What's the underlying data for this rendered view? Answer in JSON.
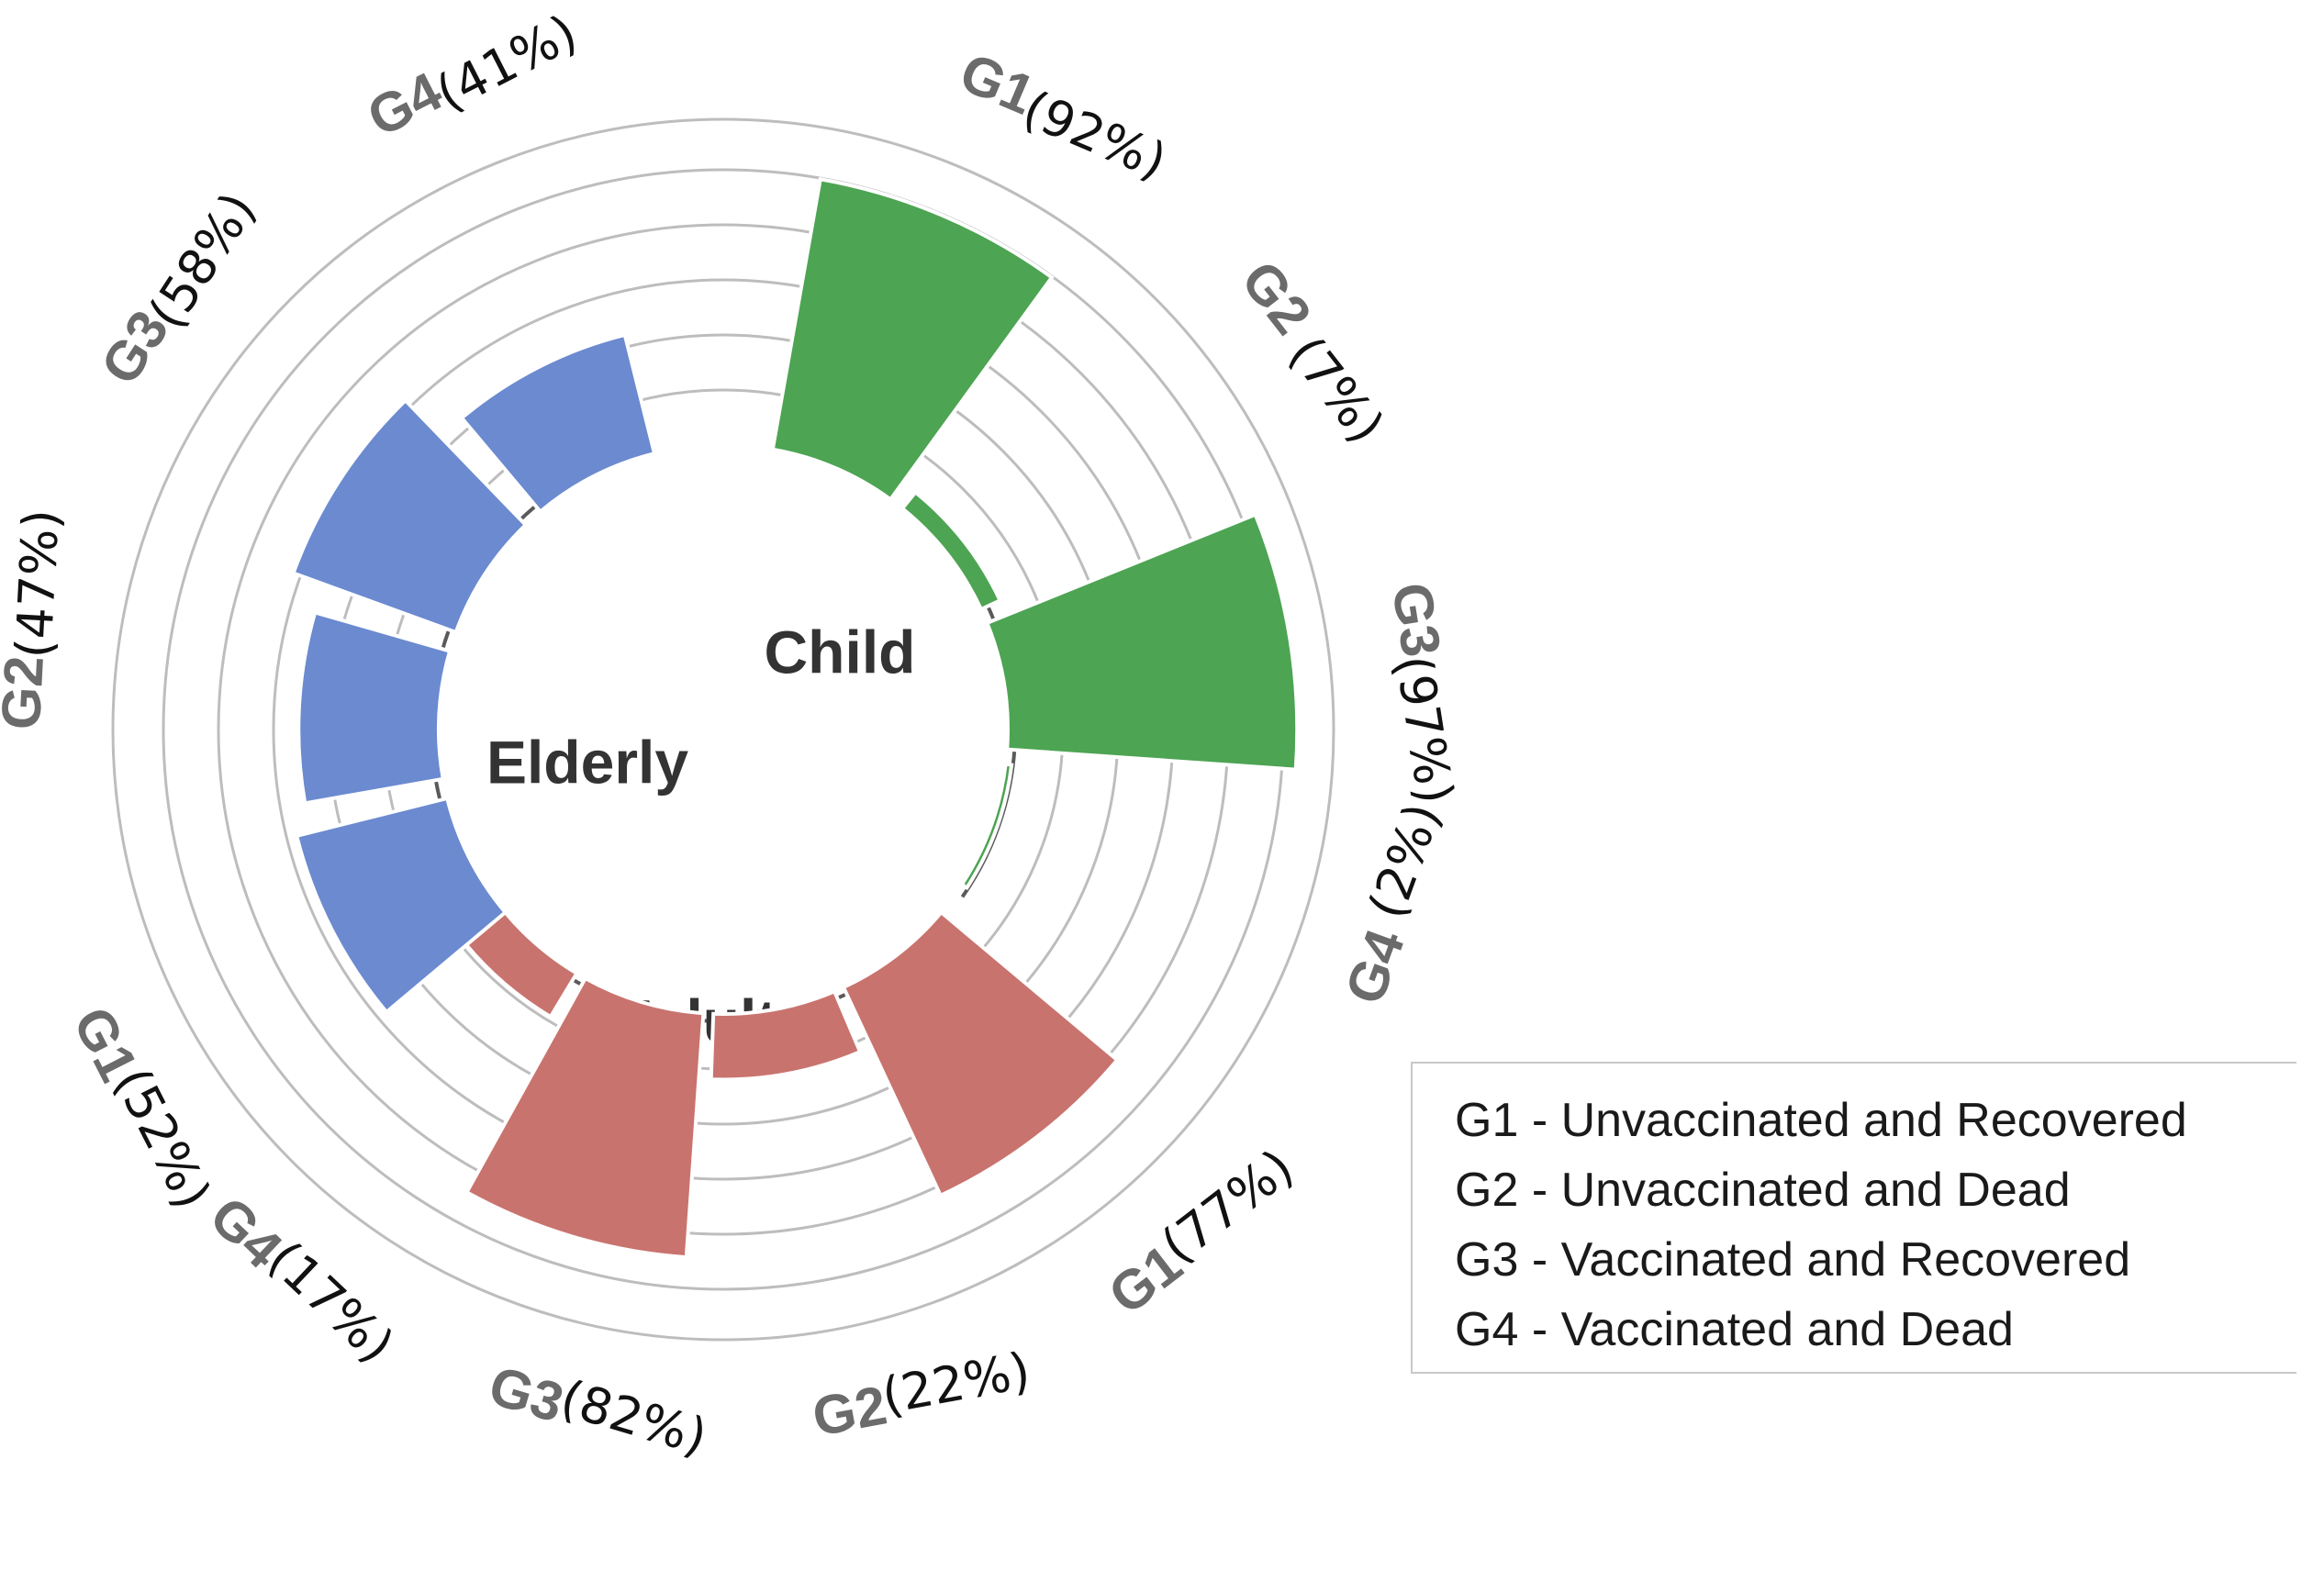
{
  "chart_data": {
    "type": "circular-bar",
    "title": "",
    "radial_range": [
      0,
      100
    ],
    "groups": [
      {
        "name": "Child",
        "color": "#4da453",
        "bars": [
          {
            "category": "G1",
            "label": "G1",
            "value": 92,
            "value_label": "(92%)"
          },
          {
            "category": "G2",
            "label": "G2",
            "value": 7,
            "value_label": "(7%)"
          },
          {
            "category": "G3",
            "label": "G3",
            "value": 97,
            "value_label": "(97%)"
          },
          {
            "category": "G4",
            "label": "G4",
            "value": 2,
            "value_label": "(2%)"
          }
        ]
      },
      {
        "name": "Adult",
        "color": "#c9736e",
        "bars": [
          {
            "category": "G1",
            "label": "G1",
            "value": 77,
            "value_label": "(77%)"
          },
          {
            "category": "G2",
            "label": "G2",
            "value": 22,
            "value_label": "(22%)"
          },
          {
            "category": "G3",
            "label": "G3",
            "value": 82,
            "value_label": "(82%)"
          },
          {
            "category": "G4",
            "label": "G4",
            "value": 17,
            "value_label": "(17%)"
          }
        ]
      },
      {
        "name": "Elderly",
        "color": "#6b8ad0",
        "bars": [
          {
            "category": "G1",
            "label": "G1",
            "value": 52,
            "value_label": "(52%)"
          },
          {
            "category": "G2",
            "label": "G2",
            "value": 47,
            "value_label": "(47%)"
          },
          {
            "category": "G3",
            "label": "G3",
            "value": 58,
            "value_label": "(58%)"
          },
          {
            "category": "G4",
            "label": "G4",
            "value": 41,
            "value_label": "(41%)"
          }
        ]
      }
    ],
    "legend": {
      "placement": "bottom-right",
      "items": [
        "G1 - Unvaccinated and Recovered",
        "G2 - Unvaccinated and Dead",
        "G3 - Vaccinated and Recovered",
        "G4 - Vaccinated and Dead"
      ]
    }
  }
}
